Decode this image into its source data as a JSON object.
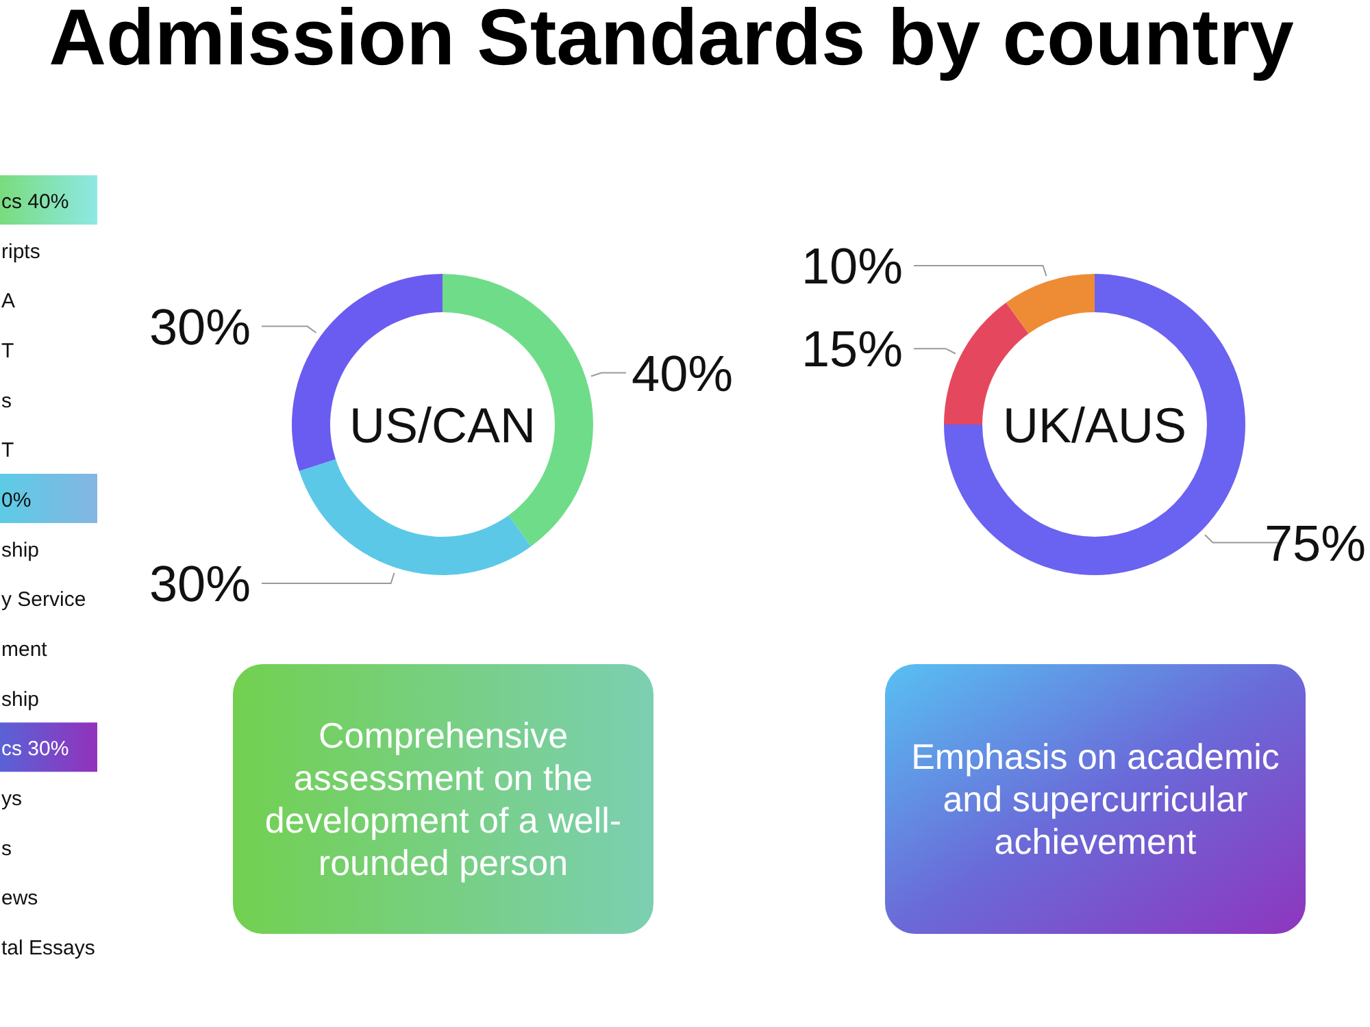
{
  "chart_data": [
    {
      "type": "other",
      "title": "Admission Standards by country",
      "annotations": [
        "cs 40%",
        "ripts",
        "A",
        "T",
        "s",
        "T",
        "0%",
        "ship",
        "y Service",
        "ment",
        "ship",
        "cs 30%",
        "ys",
        "s",
        "ews",
        "tal Essays"
      ]
    },
    {
      "type": "donut",
      "title": "US/CAN",
      "categories": [
        null,
        null,
        null
      ],
      "values": [
        40,
        30,
        30
      ],
      "colors": [
        "#6fdc8a",
        "#5cc8e8",
        "#6a5cf0"
      ],
      "value_labels": [
        "40%",
        "30%",
        "30%"
      ],
      "annotations": [
        "Comprehensive assessment on the development of a well-rounded person"
      ]
    },
    {
      "type": "donut",
      "title": "UK/AUS",
      "categories": [
        null,
        null,
        null
      ],
      "values": [
        75,
        15,
        10
      ],
      "colors": [
        "#6a62f0",
        "#e5485e",
        "#ee8c36"
      ],
      "value_labels": [
        "75%",
        "15%",
        "10%"
      ],
      "annotations": [
        "Emphasis on academic and supercurricular achievement"
      ]
    }
  ]
}
